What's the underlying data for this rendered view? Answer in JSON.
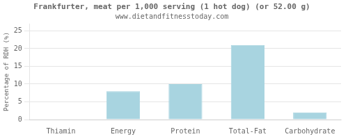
{
  "chart_data": {
    "type": "bar",
    "title": "Frankfurter, meat per 1,000 serving (1 hot dog) (or 52.00 g)",
    "subtitle": "www.dietandfitnesstoday.com",
    "categories": [
      "Thiamin",
      "Energy",
      "Protein",
      "Total-Fat",
      "Carbohydrate"
    ],
    "values": [
      0.0,
      8.0,
      10.0,
      21.0,
      2.0
    ],
    "color": "#a8d4e0",
    "ylabel": "Percentage of RDH (%)",
    "ylim": [
      0,
      27
    ],
    "yticks": [
      0,
      5,
      10,
      15,
      20,
      25
    ],
    "grid": true
  }
}
